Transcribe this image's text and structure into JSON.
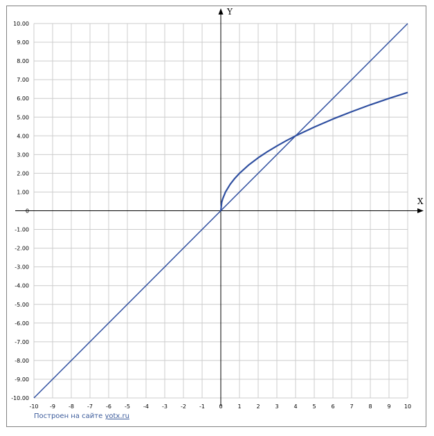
{
  "chart_data": {
    "type": "line",
    "xlabel": "X",
    "ylabel": "Y",
    "xlim": [
      -10,
      10
    ],
    "ylim": [
      -10,
      10
    ],
    "grid": true,
    "x_ticks": [
      "-10",
      "-9",
      "-8",
      "-7",
      "-6",
      "-5",
      "-4",
      "-3",
      "-2",
      "-1",
      "0",
      "1",
      "2",
      "3",
      "4",
      "5",
      "6",
      "7",
      "8",
      "9",
      "10"
    ],
    "y_ticks": [
      "10.00",
      "9.00",
      "8.00",
      "7.00",
      "6.00",
      "5.00",
      "4.00",
      "3.00",
      "2.00",
      "1.00",
      "0",
      "-1.00",
      "-2.00",
      "-3.00",
      "-4.00",
      "-5.00",
      "-6.00",
      "-7.00",
      "-8.00",
      "-9.00",
      "-10.00"
    ],
    "series": [
      {
        "color": "#2f4fa0",
        "x": [
          -10,
          10
        ],
        "y": [
          -10,
          10
        ]
      },
      {
        "color": "#2f4fa0",
        "x": [
          0,
          0.05,
          0.1,
          0.25,
          0.5,
          0.75,
          1,
          1.5,
          2,
          2.5,
          3,
          3.5,
          4,
          5,
          6,
          7,
          8,
          9,
          10
        ],
        "y": [
          0,
          0.45,
          0.63,
          1,
          1.41,
          1.73,
          2,
          2.45,
          2.83,
          3.16,
          3.46,
          3.74,
          4,
          4.47,
          4.9,
          5.29,
          5.66,
          6,
          6.32
        ]
      }
    ]
  },
  "footer": {
    "credit_text": "Построен на сайте",
    "credit_link": "yotx.ru"
  }
}
